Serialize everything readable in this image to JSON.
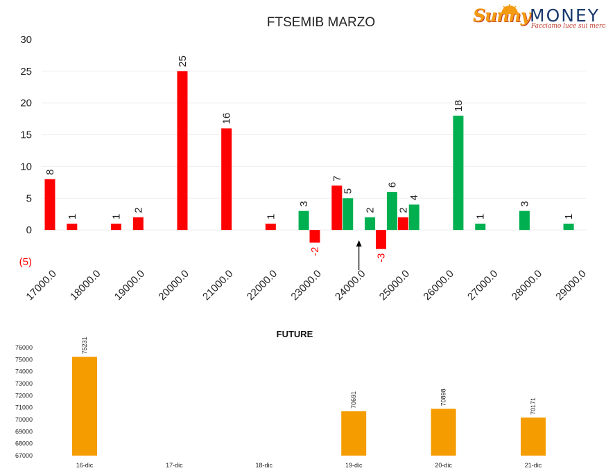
{
  "logo": {
    "brand_left": "Sunny",
    "brand_right": "MONEY",
    "tagline": "Facciamo luce sui mercati"
  },
  "colors": {
    "red": "#ff0000",
    "green": "#00b050",
    "orange": "#f59c00",
    "negative_text": "#ff0000"
  },
  "chart_data": [
    {
      "type": "bar",
      "title": "FTSEMIB MARZO",
      "xlabel": "",
      "ylabel": "",
      "categories": [
        "17000.0",
        "18000.0",
        "19000.0",
        "20000.0",
        "21000.0",
        "22000.0",
        "23000.0",
        "24000.0",
        "25000.0",
        "26000.0",
        "27000.0",
        "28000.0",
        "29000.0"
      ],
      "yticks": [
        "30",
        "25",
        "20",
        "15",
        "10",
        "5",
        "0",
        "(5)"
      ],
      "ylim": [
        -5,
        30
      ],
      "grid": true,
      "series": [
        {
          "color": "red",
          "points": [
            {
              "x": 17000,
              "y": 8
            },
            {
              "x": 17500,
              "y": 1
            },
            {
              "x": 18500,
              "y": 1
            },
            {
              "x": 19000,
              "y": 2
            },
            {
              "x": 20000,
              "y": 25
            },
            {
              "x": 21000,
              "y": 16
            },
            {
              "x": 22000,
              "y": 1
            },
            {
              "x": 23000,
              "y": -2
            },
            {
              "x": 23500,
              "y": 7
            },
            {
              "x": 24500,
              "y": -3
            },
            {
              "x": 25000,
              "y": 2
            }
          ]
        },
        {
          "color": "green",
          "points": [
            {
              "x": 22750,
              "y": 3
            },
            {
              "x": 23750,
              "y": 5
            },
            {
              "x": 24250,
              "y": 2
            },
            {
              "x": 24750,
              "y": 6
            },
            {
              "x": 25250,
              "y": 4
            },
            {
              "x": 26250,
              "y": 18
            },
            {
              "x": 26750,
              "y": 1
            },
            {
              "x": 27750,
              "y": 3
            },
            {
              "x": 28750,
              "y": 1
            }
          ]
        }
      ],
      "annotations": [
        {
          "type": "arrow",
          "x": 24000,
          "direction": "up"
        }
      ]
    },
    {
      "type": "bar",
      "title": "FUTURE",
      "xlabel": "",
      "ylabel": "",
      "categories": [
        "16-dic",
        "17-dic",
        "18-dic",
        "19-dic",
        "20-dic",
        "21-dic"
      ],
      "values": [
        75231,
        null,
        null,
        70691,
        70898,
        70171
      ],
      "yticks": [
        "76000",
        "75000",
        "74000",
        "73000",
        "72000",
        "71000",
        "70000",
        "69000",
        "68000",
        "67000"
      ],
      "ylim": [
        67000,
        76000
      ],
      "grid": false,
      "color": "orange"
    }
  ]
}
